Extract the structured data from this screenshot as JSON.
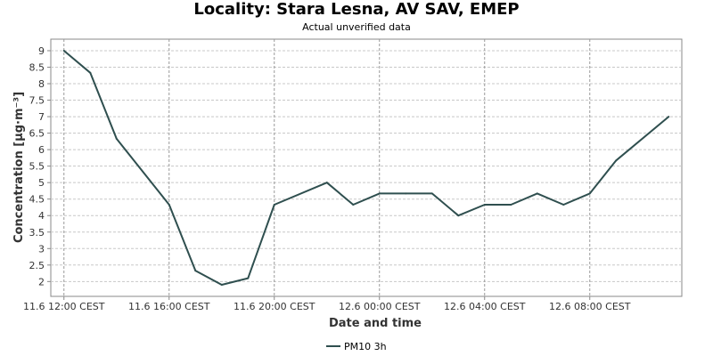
{
  "header": {
    "title": "Locality: Stara Lesna, AV SAV, EMEP",
    "subtitle": "Actual unverified data"
  },
  "chart_data": {
    "type": "line",
    "title": "Locality: Stara Lesna, AV SAV, EMEP",
    "subtitle": "Actual unverified data",
    "xlabel": "Date and time",
    "ylabel": "Concentration [µg·m⁻³]",
    "x_ticks": [
      {
        "label": "11.6 12:00 CEST",
        "hour": 0
      },
      {
        "label": "11.6 16:00 CEST",
        "hour": 4
      },
      {
        "label": "11.6 20:00 CEST",
        "hour": 8
      },
      {
        "label": "12.6 00:00 CEST",
        "hour": 12
      },
      {
        "label": "12.6 04:00 CEST",
        "hour": 16
      },
      {
        "label": "12.6 08:00 CEST",
        "hour": 20
      }
    ],
    "y_ticks": [
      2,
      2.5,
      3,
      3.5,
      4,
      4.5,
      5,
      5.5,
      6,
      6.5,
      7,
      7.5,
      8,
      8.5,
      9
    ],
    "xlim": [
      -0.5,
      23.5
    ],
    "ylim": [
      1.55,
      9.35
    ],
    "grid": true,
    "legend_position": "bottom-center",
    "series": [
      {
        "name": "PM10 3h",
        "color": "#2f4f4f",
        "points": [
          {
            "hour": 0,
            "value": 9.0
          },
          {
            "hour": 1,
            "value": 8.33
          },
          {
            "hour": 2,
            "value": 6.33
          },
          {
            "hour": 4,
            "value": 4.33
          },
          {
            "hour": 5,
            "value": 2.33
          },
          {
            "hour": 6,
            "value": 1.9
          },
          {
            "hour": 7,
            "value": 2.1
          },
          {
            "hour": 8,
            "value": 4.33
          },
          {
            "hour": 10,
            "value": 5.0
          },
          {
            "hour": 11,
            "value": 4.33
          },
          {
            "hour": 12,
            "value": 4.67
          },
          {
            "hour": 13,
            "value": 4.67
          },
          {
            "hour": 14,
            "value": 4.67
          },
          {
            "hour": 15,
            "value": 4.0
          },
          {
            "hour": 16,
            "value": 4.33
          },
          {
            "hour": 17,
            "value": 4.33
          },
          {
            "hour": 18,
            "value": 4.67
          },
          {
            "hour": 19,
            "value": 4.33
          },
          {
            "hour": 20,
            "value": 4.67
          },
          {
            "hour": 21,
            "value": 5.67
          },
          {
            "hour": 23,
            "value": 7.0
          }
        ]
      }
    ]
  }
}
